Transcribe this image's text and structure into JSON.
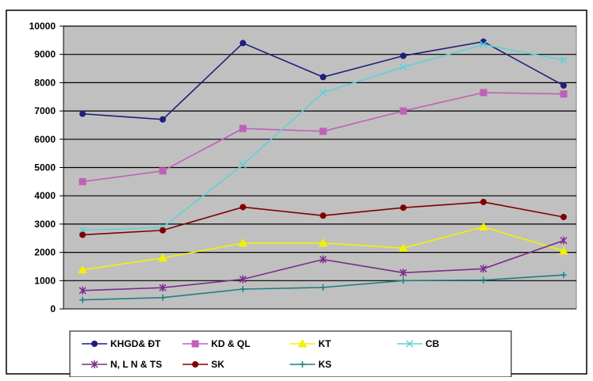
{
  "chart_data": {
    "type": "line",
    "title": "",
    "xlabel": "",
    "ylabel": "",
    "categories": [
      "",
      "",
      "",
      "",
      "",
      "",
      ""
    ],
    "ylim": [
      0,
      10000
    ],
    "yticks": [
      0,
      1000,
      2000,
      3000,
      4000,
      5000,
      6000,
      7000,
      8000,
      9000,
      10000
    ],
    "ytick_labels": [
      "0",
      "1000",
      "2000",
      "3000",
      "4000",
      "5000",
      "6000",
      "7000",
      "8000",
      "9000",
      "10000"
    ],
    "grid": true,
    "legend_position": "bottom",
    "plot_background": "#c0c0c0",
    "series": [
      {
        "name": "KHGD& ĐT",
        "color": "#1f1f7a",
        "marker": "circle",
        "values": [
          6900,
          6700,
          9400,
          8200,
          8950,
          9450,
          7900
        ]
      },
      {
        "name": "KD & QL",
        "color": "#c060b8",
        "marker": "square",
        "values": [
          4500,
          4880,
          6380,
          6280,
          7000,
          7650,
          7600
        ]
      },
      {
        "name": "KT",
        "color": "#f2f200",
        "marker": "triangle",
        "values": [
          1380,
          1800,
          2330,
          2330,
          2150,
          2900,
          2050
        ]
      },
      {
        "name": "CB",
        "color": "#5fd0d8",
        "marker": "x",
        "values": [
          2780,
          2880,
          5100,
          7650,
          8550,
          9350,
          8800
        ]
      },
      {
        "name": "N, L N & TS",
        "color": "#7a2e8a",
        "marker": "star",
        "values": [
          650,
          750,
          1050,
          1750,
          1280,
          1420,
          2420
        ]
      },
      {
        "name": "SK",
        "color": "#800000",
        "marker": "circle",
        "values": [
          2620,
          2780,
          3600,
          3300,
          3580,
          3780,
          3250
        ]
      },
      {
        "name": "KS",
        "color": "#1f8080",
        "marker": "plus",
        "values": [
          320,
          400,
          700,
          760,
          1000,
          1020,
          1200
        ]
      }
    ]
  }
}
